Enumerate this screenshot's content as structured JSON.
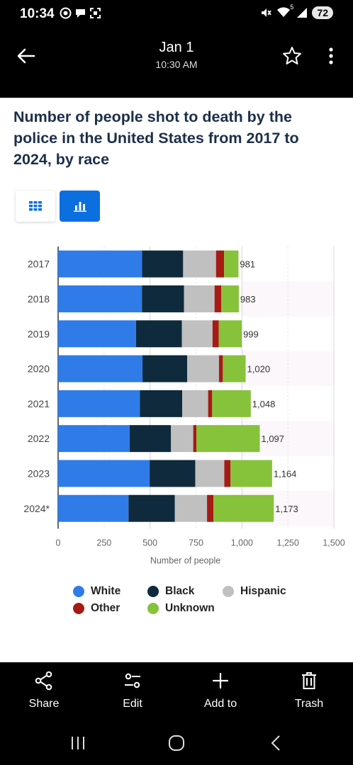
{
  "status_bar": {
    "time": "10:34",
    "signal_label": "5",
    "battery": "72"
  },
  "header": {
    "date": "Jan 1",
    "time": "10:30 AM"
  },
  "chart_title": "Number of people shot to death by the police in the United States from 2017 to 2024, by race",
  "view_toggle": {
    "table_icon": "grid-icon",
    "chart_icon": "bar-chart-icon",
    "active": "chart"
  },
  "chart_data": {
    "type": "bar",
    "orientation": "horizontal",
    "stacked": true,
    "categories": [
      "2017",
      "2018",
      "2019",
      "2020",
      "2021",
      "2022",
      "2023",
      "2024*"
    ],
    "series": [
      {
        "name": "White",
        "color": "#2f7ce8",
        "values": [
          457,
          456,
          424,
          459,
          445,
          389,
          498,
          383
        ]
      },
      {
        "name": "Black",
        "color": "#0f2a3c",
        "values": [
          223,
          229,
          249,
          243,
          230,
          225,
          248,
          252
        ]
      },
      {
        "name": "Hispanic",
        "color": "#c0c0c0",
        "values": [
          179,
          166,
          167,
          173,
          141,
          121,
          158,
          175
        ]
      },
      {
        "name": "Other",
        "color": "#a61b14",
        "values": [
          44,
          36,
          34,
          21,
          22,
          17,
          34,
          35
        ]
      },
      {
        "name": "Unknown",
        "color": "#86c23a",
        "values": [
          78,
          96,
          125,
          124,
          210,
          345,
          226,
          328
        ]
      }
    ],
    "totals": [
      "981",
      "983",
      "999",
      "1,020",
      "1,048",
      "1,097",
      "1,164",
      "1,173"
    ],
    "xlabel": "Number of people",
    "xlim": [
      0,
      1500
    ],
    "xticks": [
      "0",
      "250",
      "500",
      "750",
      "1,000",
      "1,250",
      "1,500"
    ],
    "grid": true,
    "legend_position": "bottom"
  },
  "actions": [
    {
      "label": "Share",
      "icon": "share-icon"
    },
    {
      "label": "Edit",
      "icon": "sliders-icon"
    },
    {
      "label": "Add to",
      "icon": "plus-icon"
    },
    {
      "label": "Trash",
      "icon": "trash-icon"
    }
  ],
  "nav": {
    "recents_icon": "recents-icon",
    "home_icon": "home-icon",
    "back_icon": "back-nav-icon"
  }
}
